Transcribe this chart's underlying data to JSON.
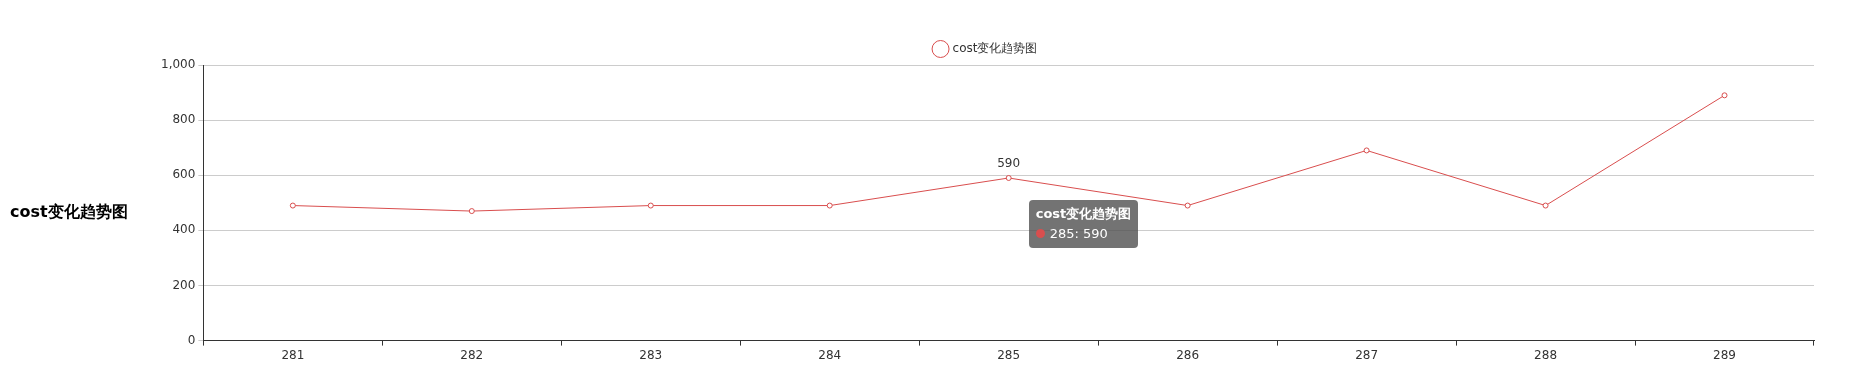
{
  "chart_data": {
    "type": "line",
    "title": "cost变化趋势图",
    "categories": [
      "281",
      "282",
      "283",
      "284",
      "285",
      "286",
      "287",
      "288",
      "289"
    ],
    "series": [
      {
        "name": "cost变化趋势图",
        "color": "#d94e4e",
        "values": [
          490,
          470,
          490,
          490,
          590,
          490,
          690,
          490,
          890
        ],
        "value_labels": [
          null,
          null,
          null,
          null,
          "590",
          null,
          null,
          null,
          null
        ]
      }
    ],
    "ylim": [
      0,
      1000
    ],
    "yticks": [
      0,
      200,
      400,
      600,
      800,
      {
        "value": 1000,
        "label": "1,000"
      }
    ],
    "grid": "y",
    "legend": "top",
    "marker": "circle",
    "line_style": "solid",
    "annotations": [
      "285: 590"
    ]
  }
}
